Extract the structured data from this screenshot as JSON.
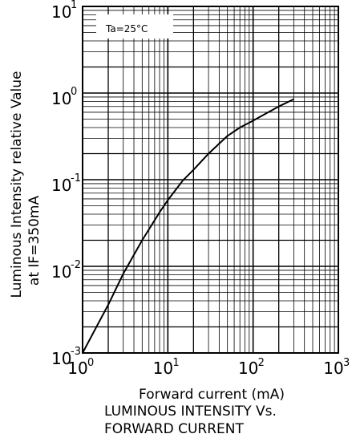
{
  "chart_data": {
    "type": "line",
    "xscale": "log",
    "yscale": "log",
    "xlim": [
      1,
      1000
    ],
    "ylim": [
      0.001,
      10
    ],
    "grid": true,
    "xlabel": "Forward current (mA)",
    "ylabel_line1": "Luminous Intensity relative Value",
    "ylabel_line2": "at IF=350mA",
    "caption_line1": "LUMINOUS INTENSITY Vs.",
    "caption_line2": "FORWARD CURRENT",
    "annotation": "Ta=25°C",
    "x_ticks": [
      {
        "base": "10",
        "exp": "0"
      },
      {
        "base": "10",
        "exp": "1"
      },
      {
        "base": "10",
        "exp": "2"
      },
      {
        "base": "10",
        "exp": "3"
      }
    ],
    "y_ticks": [
      {
        "base": "10",
        "exp": "-3"
      },
      {
        "base": "10",
        "exp": "-2"
      },
      {
        "base": "10",
        "exp": "-1"
      },
      {
        "base": "10",
        "exp": "0"
      },
      {
        "base": "10",
        "exp": "1"
      }
    ],
    "series": [
      {
        "x": [
          1,
          2,
          3,
          5,
          8,
          10,
          15,
          20,
          30,
          50,
          70,
          100,
          150,
          200,
          300
        ],
        "y": [
          0.001,
          0.0036,
          0.0082,
          0.02,
          0.042,
          0.058,
          0.098,
          0.13,
          0.2,
          0.32,
          0.4,
          0.48,
          0.6,
          0.7,
          0.85
        ]
      }
    ]
  }
}
